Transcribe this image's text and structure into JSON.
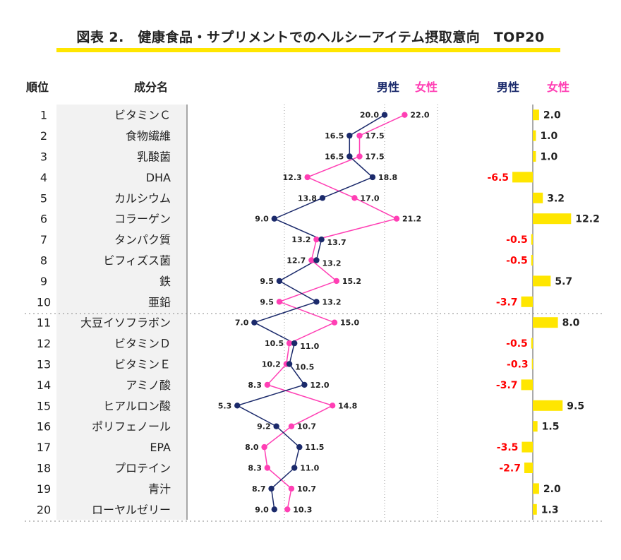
{
  "title": "図表 2.　健康食品・サプリメントでのヘルシーアイテム摂取意向　TOP20",
  "headers": {
    "rank": "順位",
    "ingredient": "成分名",
    "male": "男性",
    "female": "女性",
    "diff_male": "男性",
    "diff_female": "女性"
  },
  "colors": {
    "male": "#1b2a6b",
    "female": "#ff3fb4",
    "bar": "#ffe600",
    "negative": "#ff0000",
    "highlight": "#ffe600"
  },
  "chart_data": {
    "type": "line",
    "orientation": "vertical-dot-plot",
    "categories": [
      "ビタミンＣ",
      "食物繊維",
      "乳酸菌",
      "DHA",
      "カルシウム",
      "コラーゲン",
      "タンパク質",
      "ビフィズス菌",
      "鉄",
      "亜鉛",
      "大豆イソフラボン",
      "ビタミンＤ",
      "ビタミンＥ",
      "アミノ酸",
      "ヒアルロン酸",
      "ポリフェノール",
      "EPA",
      "プロテイン",
      "青汁",
      "ローヤルゼリー"
    ],
    "ranks": [
      1,
      2,
      3,
      4,
      5,
      6,
      7,
      8,
      9,
      10,
      11,
      12,
      13,
      14,
      15,
      16,
      17,
      18,
      19,
      20
    ],
    "series": [
      {
        "name": "男性",
        "values": [
          20.0,
          16.5,
          16.5,
          18.8,
          13.8,
          9.0,
          13.7,
          13.2,
          9.5,
          13.2,
          7.0,
          11.0,
          10.5,
          12.0,
          5.3,
          9.2,
          11.5,
          11.0,
          8.7,
          9.0
        ]
      },
      {
        "name": "女性",
        "values": [
          22.0,
          17.5,
          17.5,
          12.3,
          17.0,
          21.2,
          13.2,
          12.7,
          15.2,
          9.5,
          15.0,
          10.5,
          10.2,
          8.3,
          14.8,
          10.7,
          8.0,
          8.3,
          10.7,
          10.3
        ]
      }
    ],
    "difference": {
      "type": "bar",
      "values": [
        2.0,
        1.0,
        1.0,
        -6.5,
        3.2,
        12.2,
        -0.5,
        -0.5,
        5.7,
        -3.7,
        8.0,
        -0.5,
        -0.3,
        -3.7,
        9.5,
        1.5,
        -3.5,
        -2.7,
        2.0,
        1.3
      ],
      "labels": [
        "2.0",
        "1.0",
        "1.0",
        "-6.5",
        "3.2",
        "12.2",
        "-0.5",
        "-0.5",
        "5.7",
        "-3.7",
        "8.0",
        "-0.5",
        "-0.3",
        "-3.7",
        "9.5",
        "1.5",
        "-3.5",
        "-2.7",
        "2.0",
        "1.3"
      ]
    },
    "male_labels": [
      "20.0",
      "16.5",
      "16.5",
      "18.8",
      "13.8",
      "9.0",
      "13.7",
      "13.2",
      "9.5",
      "13.2",
      "7.0",
      "11.0",
      "10.5",
      "12.0",
      "5.3",
      "9.2",
      "11.5",
      "11.0",
      "8.7",
      "9.0"
    ],
    "female_labels": [
      "22.0",
      "17.5",
      "17.5",
      "12.3",
      "17.0",
      "21.2",
      "13.2",
      "12.7",
      "15.2",
      "9.5",
      "15.0",
      "10.5",
      "10.2",
      "8.3",
      "14.8",
      "10.7",
      "8.0",
      "8.3",
      "10.7",
      "10.3"
    ],
    "xlim": [
      0,
      25
    ],
    "grid": true
  }
}
